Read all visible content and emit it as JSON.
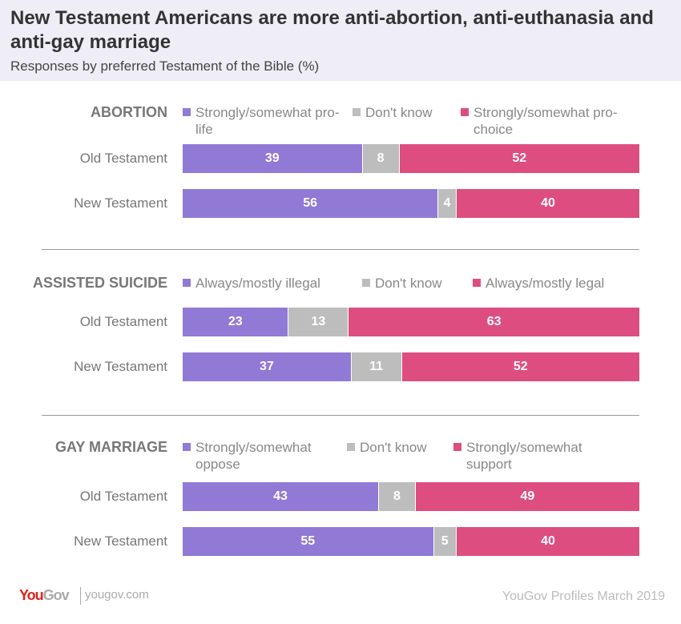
{
  "title": "New Testament Americans are more anti-abortion, anti-euthanasia and anti-gay marriage",
  "subtitle": "Responses by preferred Testament of the Bible (%)",
  "colors": {
    "first": "#9179d6",
    "dontknow": "#bdbdbd",
    "last": "#de4d80"
  },
  "chart_data": [
    {
      "type": "bar",
      "stacked": true,
      "orientation": "horizontal",
      "title": "ABORTION",
      "categories": [
        "Old Testament",
        "New Testament"
      ],
      "series": [
        {
          "name": "Strongly/somewhat pro-life",
          "values": [
            39,
            56
          ]
        },
        {
          "name": "Don't know",
          "values": [
            8,
            4
          ]
        },
        {
          "name": "Strongly/somewhat pro-choice",
          "values": [
            52,
            40
          ]
        }
      ]
    },
    {
      "type": "bar",
      "stacked": true,
      "orientation": "horizontal",
      "title": "ASSISTED SUICIDE",
      "categories": [
        "Old Testament",
        "New Testament"
      ],
      "series": [
        {
          "name": "Always/mostly illegal",
          "values": [
            23,
            37
          ]
        },
        {
          "name": "Don't know",
          "values": [
            13,
            11
          ]
        },
        {
          "name": "Always/mostly legal",
          "values": [
            63,
            52
          ]
        }
      ]
    },
    {
      "type": "bar",
      "stacked": true,
      "orientation": "horizontal",
      "title": "GAY MARRIAGE",
      "categories": [
        "Old Testament",
        "New Testament"
      ],
      "series": [
        {
          "name": "Strongly/somewhat oppose",
          "values": [
            43,
            55
          ]
        },
        {
          "name": "Don't know",
          "values": [
            8,
            5
          ]
        },
        {
          "name": "Strongly/somewhat support",
          "values": [
            49,
            40
          ]
        }
      ]
    }
  ],
  "footer": {
    "logo_you": "You",
    "logo_gov": "Gov",
    "site": "yougov.com",
    "source": "YouGov Profiles March 2019"
  }
}
